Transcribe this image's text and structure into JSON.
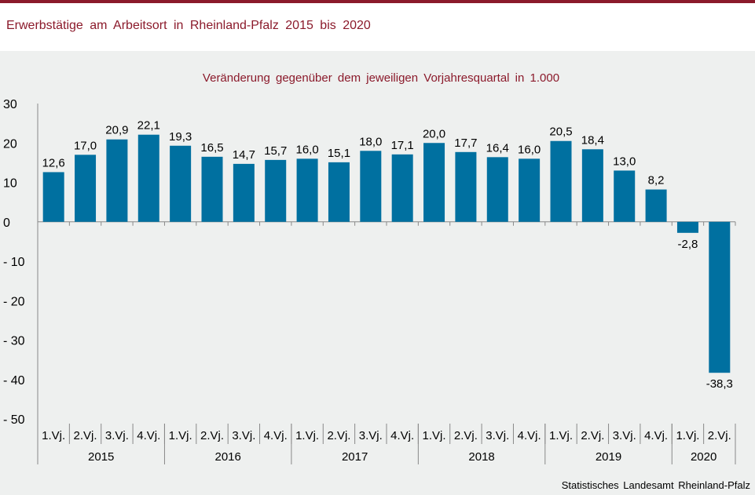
{
  "header": {
    "title": "Erwerbstätige  am  Arbeitsort  in Rheinland-Pfalz  2015  bis 2020"
  },
  "colors": {
    "accent": "#8b1a2b",
    "bar": "#0070a0"
  },
  "footer": {
    "source": "Statistisches Landesamt  Rheinland-Pfalz"
  },
  "chart_data": {
    "type": "bar",
    "title": "Veränderung  gegenüber  dem jeweiligen  Vorjahresquartal  in 1.000",
    "categories": [
      "1.Vj.",
      "2.Vj.",
      "3.Vj.",
      "4.Vj.",
      "1.Vj.",
      "2.Vj.",
      "3.Vj.",
      "4.Vj.",
      "1.Vj.",
      "2.Vj.",
      "3.Vj.",
      "4.Vj.",
      "1.Vj.",
      "2.Vj.",
      "3.Vj.",
      "4.Vj.",
      "1.Vj.",
      "2.Vj.",
      "3.Vj.",
      "4.Vj.",
      "1.Vj.",
      "2.Vj."
    ],
    "years": [
      {
        "label": "2015",
        "count": 4
      },
      {
        "label": "2016",
        "count": 4
      },
      {
        "label": "2017",
        "count": 4
      },
      {
        "label": "2018",
        "count": 4
      },
      {
        "label": "2019",
        "count": 4
      },
      {
        "label": "2020",
        "count": 2
      }
    ],
    "values": [
      12.6,
      17.0,
      20.9,
      22.1,
      19.3,
      16.5,
      14.7,
      15.7,
      16.0,
      15.1,
      18.0,
      17.1,
      20.0,
      17.7,
      16.4,
      16.0,
      20.5,
      18.4,
      13.0,
      8.2,
      -2.8,
      -38.3
    ],
    "value_labels": [
      "12,6",
      "17,0",
      "20,9",
      "22,1",
      "19,3",
      "16,5",
      "14,7",
      "15,7",
      "16,0",
      "15,1",
      "18,0",
      "17,1",
      "20,0",
      "17,7",
      "16,4",
      "16,0",
      "20,5",
      "18,4",
      "13,0",
      "8,2",
      "-2,8",
      "-38,3"
    ],
    "ylim": [
      -50,
      30
    ],
    "yticks": [
      30,
      20,
      10,
      0,
      -10,
      -20,
      -30,
      -40,
      -50
    ],
    "ytick_labels": [
      "30",
      "20",
      "10",
      "0",
      "- 10",
      "- 20",
      "- 30",
      "- 40",
      "- 50"
    ],
    "grid": false,
    "legend": "none"
  }
}
